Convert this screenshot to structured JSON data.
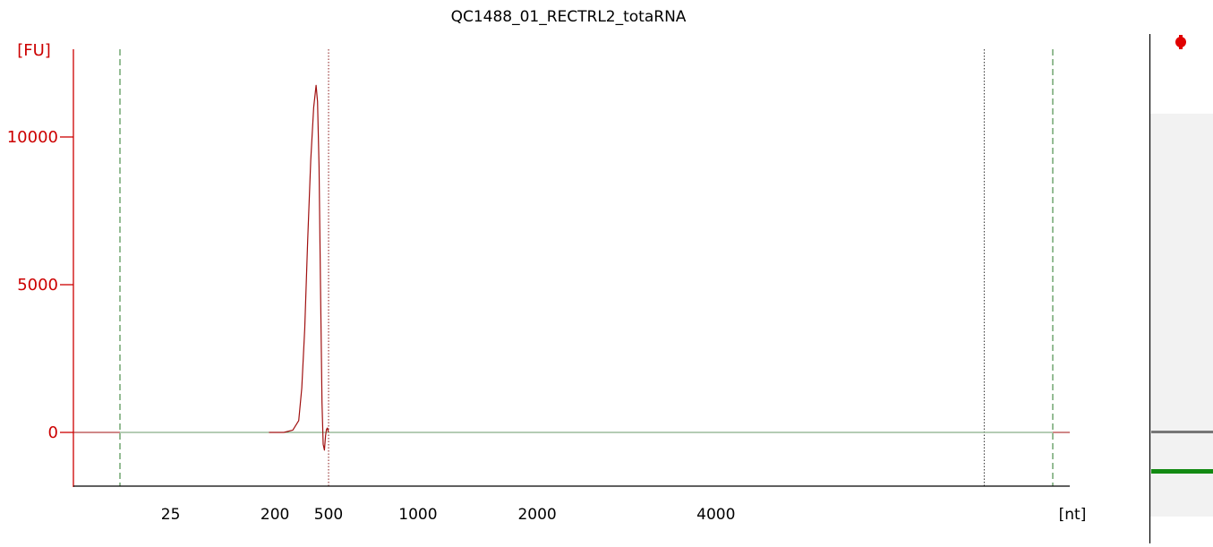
{
  "colors": {
    "axis_y": "#cc0000",
    "axis_x": "#000000",
    "trace": "#a01010",
    "baseline": "#6a9a6a",
    "marker_green_dashed": "#2a7a2a",
    "marker_red_dotted": "#8b1a1a",
    "marker_black_dotted": "#333333",
    "gel_background": "#f2f2f2",
    "gel_band_gray": "#777777",
    "gel_band_green": "#138a13",
    "gel_dot_red": "#e00000"
  },
  "chart_data": {
    "type": "line",
    "title": "QC1488_01_RECTRL2_totaRNA",
    "ylabel": "[FU]",
    "xlabel": "[nt]",
    "ylim": [
      -1800,
      12800
    ],
    "yticks": [
      0,
      5000,
      10000
    ],
    "x_tick_labels": [
      "25",
      "200",
      "500",
      "1000",
      "2000",
      "4000"
    ],
    "x_tick_positions": [
      17,
      52,
      70,
      100,
      140,
      200
    ],
    "xlim": [
      -18,
      313
    ],
    "series": [
      {
        "values": [
          [
            -18,
            0
          ],
          [
            50,
            0
          ],
          [
            55,
            0
          ],
          [
            58,
            80
          ],
          [
            60,
            400
          ],
          [
            61,
            1500
          ],
          [
            62,
            3500
          ],
          [
            63,
            6500
          ],
          [
            64,
            9200
          ],
          [
            65,
            11000
          ],
          [
            65.8,
            11750
          ],
          [
            66.3,
            11200
          ],
          [
            66.8,
            9000
          ],
          [
            67.3,
            5000
          ],
          [
            67.8,
            1000
          ],
          [
            68.2,
            -400
          ],
          [
            68.6,
            -600
          ],
          [
            69,
            -100
          ],
          [
            69.3,
            100
          ],
          [
            69.6,
            150
          ],
          [
            70,
            0
          ],
          [
            313,
            0
          ]
        ]
      }
    ],
    "vertical_markers": [
      {
        "x": 0,
        "style": "green-dashed"
      },
      {
        "x": 70,
        "style": "red-dotted"
      },
      {
        "x": 290,
        "style": "black-dotted"
      },
      {
        "x": 313,
        "style": "green-dashed"
      }
    ]
  },
  "gel_lane": {
    "bands": [
      "red-dot-top",
      "gray-band",
      "green-band"
    ]
  }
}
